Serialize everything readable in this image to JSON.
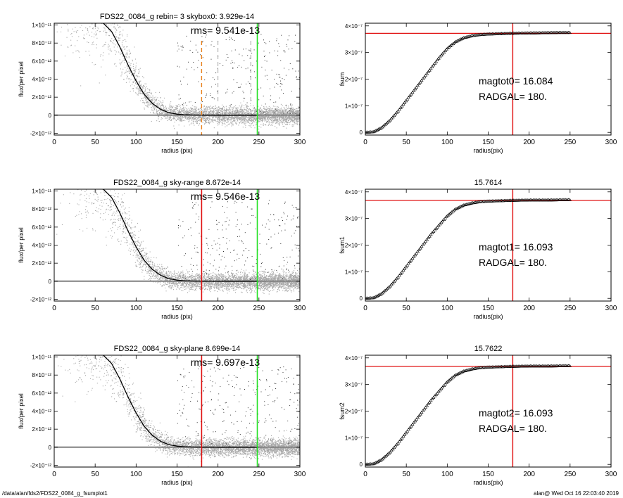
{
  "footer": {
    "path": "/data/alan/fds2/FDS22_0084_g_fsumplot1",
    "user_time": "alan@  Wed Oct 16 22:03:40 2019"
  },
  "colors": {
    "scatter": "#a8a8a8",
    "profile": "#000000",
    "zero_line": "#808080",
    "orange_dash": "#e8821e",
    "red": "#e01010",
    "green": "#22e022",
    "gray_dash": "#9a9a9a"
  },
  "chart_data": [
    {
      "type": "scatter",
      "title": "FDS22_0084_g rebin= 3    skybox0:  3.929e-14",
      "rms_text": "rms= 9.541e-13",
      "xlabel": "radius (pix)",
      "ylabel": "flux/per pixel",
      "xlim": [
        0,
        300
      ],
      "ylim": [
        -2.2e-12,
        1.02e-11
      ],
      "xticks": [
        0,
        50,
        100,
        150,
        200,
        250,
        300
      ],
      "xtick_labels": [
        "0",
        "50",
        "100",
        "150",
        "200",
        "250",
        "300"
      ],
      "yticks": [
        -2e-12,
        0,
        2e-12,
        4e-12,
        6e-12,
        8e-12,
        1e-11
      ],
      "ytick_labels": [
        "-2×10⁻¹²",
        "0",
        "2×10⁻¹²",
        "4×10⁻¹²",
        "6×10⁻¹²",
        "8×10⁻¹²",
        "1×10⁻¹¹"
      ],
      "profile_x": [
        60,
        70,
        80,
        90,
        100,
        110,
        120,
        130,
        140,
        150,
        160,
        170,
        180,
        200,
        220,
        240,
        250
      ],
      "profile_y": [
        1.02e-11,
        9.3e-12,
        7.6e-12,
        5.6e-12,
        3.8e-12,
        2.3e-12,
        1.3e-12,
        6.5e-13,
        2.8e-13,
        1.2e-13,
        5e-14,
        2e-14,
        1e-14,
        0,
        0,
        0,
        0
      ],
      "vlines": [
        {
          "x": 180,
          "color": "orange_dash",
          "dashed": true
        },
        {
          "x": 200,
          "color": "gray_dash",
          "dashed": true
        },
        {
          "x": 240,
          "color": "gray_dash",
          "dashed": true
        },
        {
          "x": 248,
          "color": "green",
          "dashed": false
        }
      ]
    },
    {
      "type": "line",
      "title": "",
      "annotation_1": "magtot0=  16.084",
      "annotation_2": "RADGAL=     180.",
      "xlabel": "radius(pix)",
      "ylabel": "fsum",
      "xlim": [
        0,
        300
      ],
      "ylim": [
        -1e-08,
        4.1e-07
      ],
      "xticks": [
        0,
        50,
        100,
        150,
        200,
        250,
        300
      ],
      "xtick_labels": [
        "0",
        "50",
        "100",
        "150",
        "200",
        "250",
        "300"
      ],
      "yticks": [
        0,
        1e-07,
        2e-07,
        3e-07,
        4e-07
      ],
      "ytick_labels": [
        "0",
        "1×10⁻⁷",
        "2×10⁻⁷",
        "3×10⁻⁷",
        "4×10⁻⁷"
      ],
      "curve_x": [
        0,
        10,
        20,
        30,
        40,
        50,
        60,
        70,
        80,
        90,
        100,
        110,
        120,
        130,
        140,
        150,
        160,
        170,
        180,
        200,
        220,
        240,
        250
      ],
      "curve_y": [
        0,
        2e-09,
        1.8e-08,
        4.5e-08,
        8e-08,
        1.2e-07,
        1.6e-07,
        2e-07,
        2.4e-07,
        2.8e-07,
        3.15e-07,
        3.4e-07,
        3.55e-07,
        3.63e-07,
        3.67e-07,
        3.69e-07,
        3.7e-07,
        3.71e-07,
        3.72e-07,
        3.73e-07,
        3.74e-07,
        3.75e-07,
        3.75e-07
      ],
      "hline": 3.72e-07,
      "vline": 180
    },
    {
      "type": "scatter",
      "title": "FDS22_0084_g sky-range  8.672e-14",
      "rms_text": "rms= 9.546e-13",
      "xlabel": "radius (pix)",
      "ylabel": "flux/per pixel",
      "xlim": [
        0,
        300
      ],
      "ylim": [
        -2.2e-12,
        1.02e-11
      ],
      "xticks": [
        0,
        50,
        100,
        150,
        200,
        250,
        300
      ],
      "xtick_labels": [
        "0",
        "50",
        "100",
        "150",
        "200",
        "250",
        "300"
      ],
      "yticks": [
        -2e-12,
        0,
        2e-12,
        4e-12,
        6e-12,
        8e-12,
        1e-11
      ],
      "ytick_labels": [
        "-2×10⁻¹²",
        "0",
        "2×10⁻¹²",
        "4×10⁻¹²",
        "6×10⁻¹²",
        "8×10⁻¹²",
        "1×10⁻¹¹"
      ],
      "profile_x": [
        60,
        70,
        80,
        90,
        100,
        110,
        120,
        130,
        140,
        150,
        160,
        170,
        180,
        200,
        220,
        240,
        250
      ],
      "profile_y": [
        1.02e-11,
        9.3e-12,
        7.6e-12,
        5.6e-12,
        3.8e-12,
        2.3e-12,
        1.3e-12,
        6.5e-13,
        2.8e-13,
        1.2e-13,
        5e-14,
        2e-14,
        1e-14,
        0,
        0,
        0,
        0
      ],
      "vlines": [
        {
          "x": 180,
          "color": "red",
          "dashed": false
        },
        {
          "x": 248,
          "color": "green",
          "dashed": false
        }
      ]
    },
    {
      "type": "line",
      "title": "15.7614",
      "annotation_1": "magtot1=  16.093",
      "annotation_2": "RADGAL=     180.",
      "xlabel": "radius(pix)",
      "ylabel": "fsum1",
      "xlim": [
        0,
        300
      ],
      "ylim": [
        -1e-08,
        4.1e-07
      ],
      "xticks": [
        0,
        50,
        100,
        150,
        200,
        250,
        300
      ],
      "xtick_labels": [
        "0",
        "50",
        "100",
        "150",
        "200",
        "250",
        "300"
      ],
      "yticks": [
        0,
        1e-07,
        2e-07,
        3e-07,
        4e-07
      ],
      "ytick_labels": [
        "0",
        "1×10⁻⁷",
        "2×10⁻⁷",
        "3×10⁻⁷",
        "4×10⁻⁷"
      ],
      "curve_x": [
        0,
        10,
        20,
        30,
        40,
        50,
        60,
        70,
        80,
        90,
        100,
        110,
        120,
        130,
        140,
        150,
        160,
        170,
        180,
        200,
        220,
        240,
        250
      ],
      "curve_y": [
        0,
        2e-09,
        1.8e-08,
        4.5e-08,
        8e-08,
        1.2e-07,
        1.6e-07,
        2e-07,
        2.4e-07,
        2.75e-07,
        3.1e-07,
        3.35e-07,
        3.5e-07,
        3.58e-07,
        3.63e-07,
        3.65e-07,
        3.66e-07,
        3.67e-07,
        3.68e-07,
        3.69e-07,
        3.69e-07,
        3.7e-07,
        3.7e-07
      ],
      "hline": 3.68e-07,
      "vline": 180
    },
    {
      "type": "scatter",
      "title": "FDS22_0084_g sky-plane  8.699e-14",
      "rms_text": "rms= 9.697e-13",
      "xlabel": "radius (pix)",
      "ylabel": "flux/per pixel",
      "xlim": [
        0,
        300
      ],
      "ylim": [
        -2.2e-12,
        1.02e-11
      ],
      "xticks": [
        0,
        50,
        100,
        150,
        200,
        250,
        300
      ],
      "xtick_labels": [
        "0",
        "50",
        "100",
        "150",
        "200",
        "250",
        "300"
      ],
      "yticks": [
        -2e-12,
        0,
        2e-12,
        4e-12,
        6e-12,
        8e-12,
        1e-11
      ],
      "ytick_labels": [
        "-2×10⁻¹²",
        "0",
        "2×10⁻¹²",
        "4×10⁻¹²",
        "6×10⁻¹²",
        "8×10⁻¹²",
        "1×10⁻¹¹"
      ],
      "profile_x": [
        60,
        70,
        80,
        90,
        100,
        110,
        120,
        130,
        140,
        150,
        160,
        170,
        180,
        200,
        220,
        240,
        250
      ],
      "profile_y": [
        1.02e-11,
        9.3e-12,
        7.6e-12,
        5.6e-12,
        3.8e-12,
        2.3e-12,
        1.3e-12,
        6.5e-13,
        2.8e-13,
        1.2e-13,
        5e-14,
        2e-14,
        1e-14,
        0,
        0,
        0,
        0
      ],
      "vlines": [
        {
          "x": 180,
          "color": "red",
          "dashed": false
        },
        {
          "x": 248,
          "color": "green",
          "dashed": false
        }
      ]
    },
    {
      "type": "line",
      "title": "15.7622",
      "annotation_1": "magtot2=  16.093",
      "annotation_2": "RADGAL=     180.",
      "xlabel": "radius(pix)",
      "ylabel": "fsum2",
      "xlim": [
        0,
        300
      ],
      "ylim": [
        -1e-08,
        4.1e-07
      ],
      "xticks": [
        0,
        50,
        100,
        150,
        200,
        250,
        300
      ],
      "xtick_labels": [
        "0",
        "50",
        "100",
        "150",
        "200",
        "250",
        "300"
      ],
      "yticks": [
        0,
        1e-07,
        2e-07,
        3e-07,
        4e-07
      ],
      "ytick_labels": [
        "0",
        "1×10⁻⁷",
        "2×10⁻⁷",
        "3×10⁻⁷",
        "4×10⁻⁷"
      ],
      "curve_x": [
        0,
        10,
        20,
        30,
        40,
        50,
        60,
        70,
        80,
        90,
        100,
        110,
        120,
        130,
        140,
        150,
        160,
        170,
        180,
        200,
        220,
        240,
        250
      ],
      "curve_y": [
        0,
        2e-09,
        1.8e-08,
        4.5e-08,
        8e-08,
        1.2e-07,
        1.6e-07,
        2e-07,
        2.4e-07,
        2.75e-07,
        3.1e-07,
        3.35e-07,
        3.5e-07,
        3.58e-07,
        3.63e-07,
        3.65e-07,
        3.66e-07,
        3.67e-07,
        3.68e-07,
        3.69e-07,
        3.69e-07,
        3.7e-07,
        3.7e-07
      ],
      "hline": 3.68e-07,
      "vline": 180
    }
  ]
}
